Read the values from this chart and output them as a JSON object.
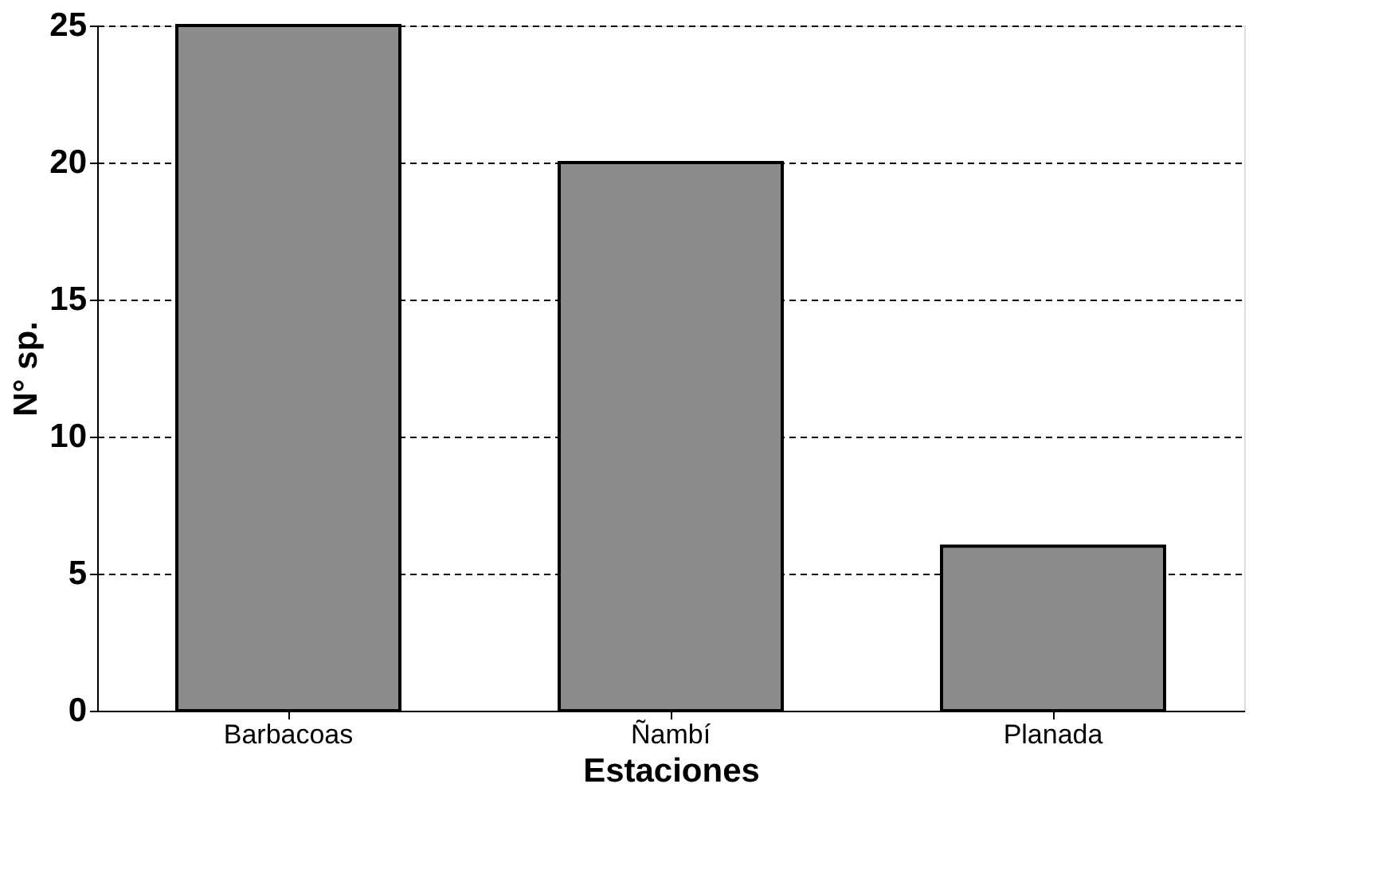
{
  "chart_data": {
    "type": "bar",
    "xlabel": "Estaciones",
    "ylabel": "N° sp.",
    "categories": [
      "Barbacoas",
      "Ñambí",
      "Planada"
    ],
    "values": [
      25,
      20,
      6
    ],
    "color": "#8c8c8c",
    "ylim": [
      0,
      25
    ],
    "yticks": [
      0,
      5,
      10,
      15,
      20,
      25
    ],
    "grid": "y"
  }
}
